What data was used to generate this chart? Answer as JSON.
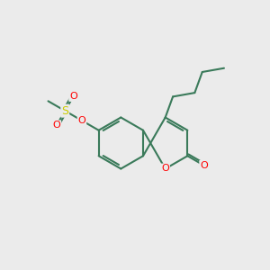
{
  "background_color": "#ebebeb",
  "bond_color": "#3a7a5a",
  "bond_width": 1.5,
  "atom_colors": {
    "O": "#ff0000",
    "S": "#cccc00"
  },
  "fig_width": 3.0,
  "fig_height": 3.0,
  "dpi": 100
}
